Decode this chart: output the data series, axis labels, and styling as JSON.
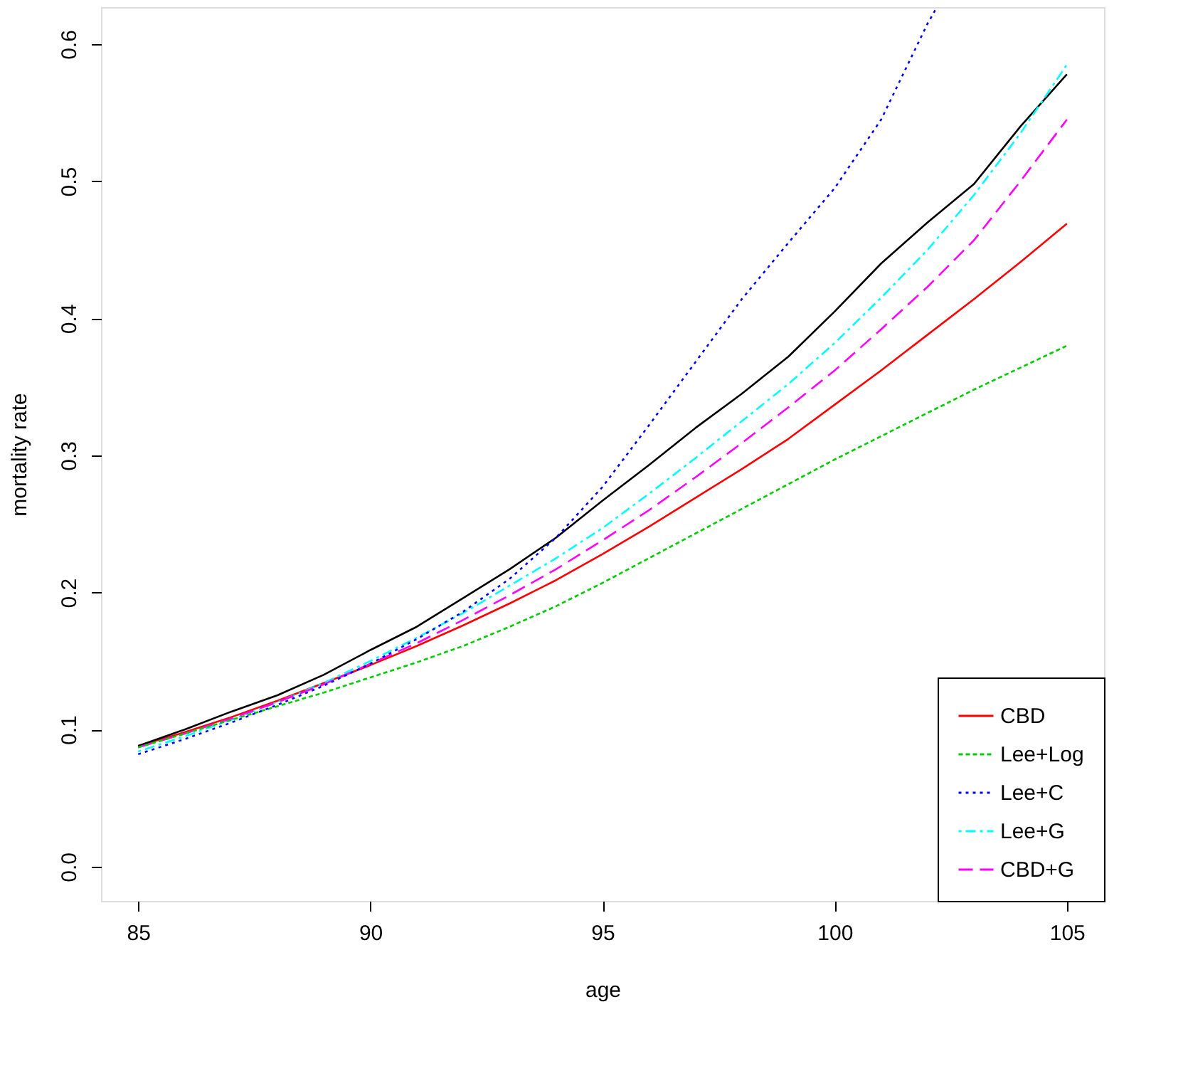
{
  "chart_data": {
    "type": "line",
    "xlabel": "age",
    "ylabel": "mortality rate",
    "x": [
      85,
      86,
      87,
      88,
      89,
      90,
      91,
      92,
      93,
      94,
      95,
      96,
      97,
      98,
      99,
      100,
      101,
      102,
      103,
      104,
      105
    ],
    "series": [
      {
        "name": "CBD",
        "color": "#ff0000",
        "line_style": "solid",
        "values": [
          0.088,
          0.098,
          0.109,
          0.121,
          0.134,
          0.147,
          0.161,
          0.176,
          0.192,
          0.209,
          0.228,
          0.248,
          0.269,
          0.29,
          0.312,
          0.337,
          0.362,
          0.388,
          0.414,
          0.441,
          0.469
        ]
      },
      {
        "name": "Lee+Log",
        "color": "#00cd00",
        "line_style": "dashed",
        "values": [
          0.087,
          0.097,
          0.107,
          0.117,
          0.127,
          0.138,
          0.149,
          0.161,
          0.175,
          0.19,
          0.207,
          0.225,
          0.243,
          0.261,
          0.279,
          0.297,
          0.314,
          0.331,
          0.348,
          0.364,
          0.38
        ]
      },
      {
        "name": "Lee+C",
        "color": "#0000ff",
        "line_style": "dotted",
        "x": [
          85,
          86,
          87,
          88,
          89,
          90,
          91,
          92,
          93,
          94,
          95,
          96,
          97,
          98,
          99,
          100,
          101,
          102,
          102.2
        ],
        "values": [
          0.082,
          0.093,
          0.105,
          0.118,
          0.132,
          0.148,
          0.166,
          0.186,
          0.21,
          0.24,
          0.277,
          0.322,
          0.368,
          0.414,
          0.455,
          0.495,
          0.545,
          0.615,
          0.627
        ]
      },
      {
        "name": "Lee+G",
        "color": "#00ffff",
        "line_style": "dashdot",
        "values": [
          0.084,
          0.095,
          0.107,
          0.12,
          0.134,
          0.15,
          0.167,
          0.185,
          0.205,
          0.225,
          0.247,
          0.272,
          0.298,
          0.325,
          0.352,
          0.382,
          0.415,
          0.45,
          0.49,
          0.535,
          0.585
        ]
      },
      {
        "name": "CBD+G",
        "color": "#ff00ff",
        "line_style": "longdash",
        "values": [
          0.087,
          0.097,
          0.108,
          0.12,
          0.133,
          0.148,
          0.163,
          0.18,
          0.198,
          0.217,
          0.238,
          0.26,
          0.284,
          0.309,
          0.335,
          0.362,
          0.392,
          0.423,
          0.457,
          0.5,
          0.545
        ]
      },
      {
        "color": "#000000",
        "line_style": "solid",
        "values": [
          0.088,
          0.1,
          0.113,
          0.125,
          0.14,
          0.158,
          0.175,
          0.196,
          0.217,
          0.24,
          0.267,
          0.293,
          0.32,
          0.345,
          0.372,
          0.405,
          0.44,
          0.47,
          0.498,
          0.54,
          0.578
        ]
      }
    ],
    "xlim": [
      84.2,
      105.8
    ],
    "xticks": [
      85,
      90,
      95,
      100,
      105
    ],
    "ylim": [
      -0.025,
      0.627
    ],
    "yticks": [
      {
        "value": 0,
        "label": "0.0"
      },
      0.1,
      0.2,
      0.3,
      0.4,
      0.5,
      0.6
    ],
    "grid": false,
    "legend": "bottom right"
  }
}
